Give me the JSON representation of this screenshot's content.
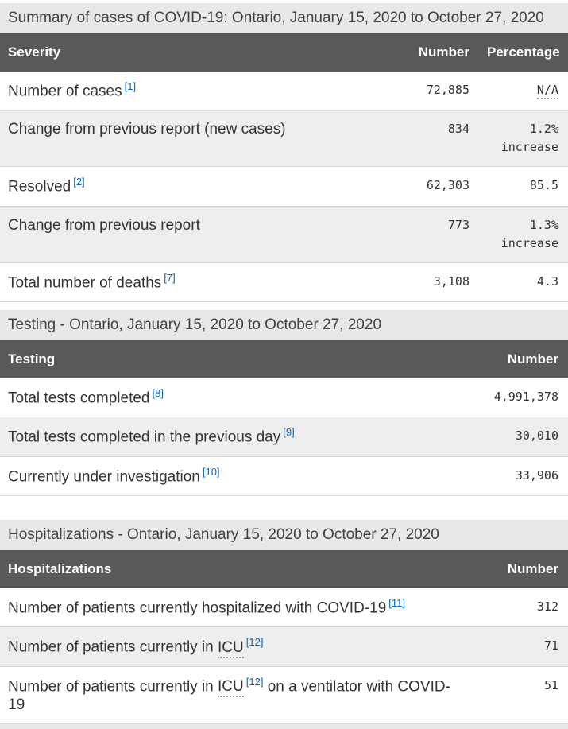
{
  "colors": {
    "header_bg": "#595959",
    "header_text": "#ffffff",
    "caption_bg": "#e8e8e8",
    "stripe_bg": "#eeeeee",
    "caption_text": "#414141",
    "text": "#333333",
    "link": "#0066cc",
    "row_border": "#d8d8d8"
  },
  "summary_table": {
    "caption": "Summary of cases of COVID-19: Ontario, January 15, 2020 to October 27, 2020",
    "headers": {
      "severity": "Severity",
      "number": "Number",
      "percentage": "Percentage"
    },
    "rows": [
      {
        "label": "Number of cases",
        "ref": "[1]",
        "number": "72,885",
        "percentage": "N/A"
      },
      {
        "label": "Change from previous report (new cases)",
        "number": "834",
        "percentage": "1.2% increase"
      },
      {
        "label": "Resolved",
        "ref": "[2]",
        "number": "62,303",
        "percentage": "85.5"
      },
      {
        "label": "Change from previous report",
        "number": "773",
        "percentage": "1.3% increase"
      },
      {
        "label": "Total number of deaths",
        "ref": "[7]",
        "number": "3,108",
        "percentage": "4.3"
      }
    ]
  },
  "testing_table": {
    "caption": "Testing - Ontario, January 15, 2020 to October 27, 2020",
    "headers": {
      "testing": "Testing",
      "number": "Number"
    },
    "rows": [
      {
        "label": "Total tests completed",
        "ref": "[8]",
        "number": "4,991,378"
      },
      {
        "label": "Total tests completed in the previous day",
        "ref": "[9]",
        "number": "30,010"
      },
      {
        "label": "Currently under investigation",
        "ref": "[10]",
        "number": "33,906"
      }
    ]
  },
  "hospitalizations_table": {
    "caption": "Hospitalizations - Ontario, January 15, 2020 to October 27, 2020",
    "headers": {
      "hospitalizations": "Hospitalizations",
      "number": "Number"
    },
    "rows": [
      {
        "label": "Number of patients currently hospitalized with COVID-19",
        "ref": "[11]",
        "number": "312"
      },
      {
        "label_pre": "Number of patients currently in",
        "abbr": "ICU",
        "ref": "[12]",
        "number": "71"
      },
      {
        "label_pre": "Number of patients currently in",
        "abbr": "ICU",
        "ref": "[12]",
        "label_post": "on a ventilator with COVID-19",
        "number": "51"
      }
    ]
  }
}
